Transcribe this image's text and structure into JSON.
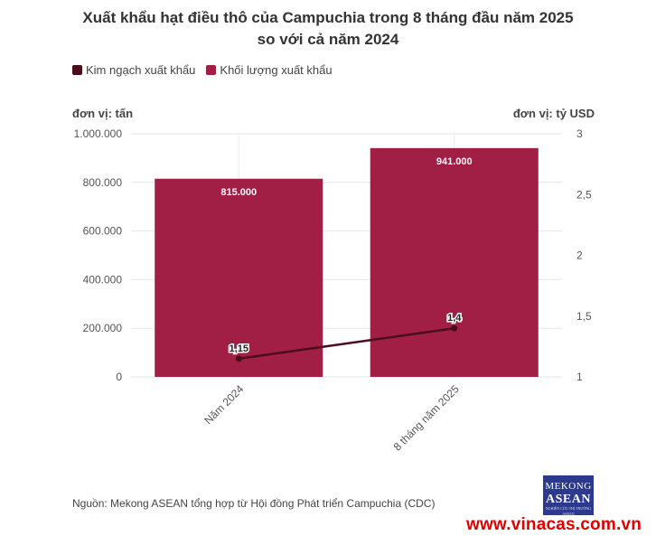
{
  "chart_data": {
    "type": "bar+line",
    "title_line1": "Xuất khẩu hạt điều thô của Campuchia trong 8 tháng đầu năm 2025",
    "title_line2": "so với cả năm 2024",
    "categories": [
      "Năm 2024",
      "8 tháng năm 2025"
    ],
    "series": [
      {
        "name": "Kim ngạch xuất khẩu",
        "type": "line",
        "axis": "right",
        "values": [
          1.15,
          1.4
        ],
        "labels": [
          "1,15",
          "1,4"
        ],
        "color": "#4a0d1c"
      },
      {
        "name": "Khối lượng xuất khẩu",
        "type": "bar",
        "axis": "left",
        "values": [
          815000,
          941000
        ],
        "labels": [
          "815.000",
          "941.000"
        ],
        "color": "#a11e45"
      }
    ],
    "y_left": {
      "unit_label": "đơn vị: tấn",
      "range": [
        0,
        1000000
      ],
      "ticks": [
        0,
        200000,
        400000,
        600000,
        800000,
        1000000
      ],
      "tick_labels": [
        "0",
        "200.000",
        "400.000",
        "600.000",
        "800.000",
        "1.000.000"
      ]
    },
    "y_right": {
      "unit_label": "đơn vị: tỷ USD",
      "range": [
        1,
        3
      ],
      "ticks": [
        1,
        1.5,
        2,
        2.5,
        3
      ],
      "tick_labels": [
        "1",
        "1,5",
        "2",
        "2,5",
        "3"
      ]
    },
    "grid": true,
    "legend_position": "top-left"
  },
  "source": "Nguồn: Mekong ASEAN tổng hợp từ Hội đồng Phát triển Campuchia (CDC)",
  "logo": {
    "line1": "MEKONG",
    "line2": "ASEAN",
    "line3": "NGHIÊN CỨU THỊ TRƯỜNG ASEAN"
  },
  "watermark_url": "www.vinacas.com.vn"
}
